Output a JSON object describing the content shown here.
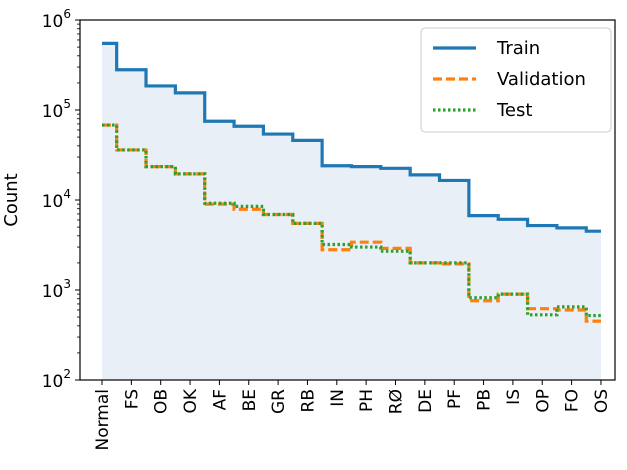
{
  "chart_data": {
    "type": "step",
    "categories": [
      "Normal",
      "FS",
      "OB",
      "OK",
      "AF",
      "BE",
      "GR",
      "RB",
      "IN",
      "PH",
      "RØ",
      "DE",
      "PF",
      "PB",
      "IS",
      "OP",
      "FO",
      "OS"
    ],
    "ylabel": "Count",
    "xlabel": "",
    "yscale": "log",
    "ylim": [
      100,
      1000000
    ],
    "y_ticks": [
      {
        "base": "10",
        "exp": "2"
      },
      {
        "base": "10",
        "exp": "3"
      },
      {
        "base": "10",
        "exp": "4"
      },
      {
        "base": "10",
        "exp": "5"
      },
      {
        "base": "10",
        "exp": "6"
      }
    ],
    "legend_position": "top-right",
    "grid": false,
    "fill_under_first_series": true,
    "fill_color": "#e8eff7",
    "series": [
      {
        "name": "Train",
        "color": "#1f77b4",
        "style": "solid",
        "values": [
          550000,
          280000,
          185000,
          155000,
          75000,
          66000,
          54000,
          46000,
          24000,
          23500,
          22500,
          19000,
          16500,
          6700,
          6100,
          5200,
          4900,
          4500
        ]
      },
      {
        "name": "Validation",
        "color": "#ff7f0e",
        "style": "dashed",
        "values": [
          68000,
          36000,
          23500,
          19500,
          9000,
          7900,
          6900,
          5500,
          2800,
          3400,
          2900,
          2000,
          1950,
          760,
          900,
          620,
          600,
          450
        ]
      },
      {
        "name": "Test",
        "color": "#2ca02c",
        "style": "dotted",
        "values": [
          68000,
          36000,
          23500,
          19500,
          9200,
          8500,
          6900,
          5500,
          3200,
          3000,
          2700,
          2000,
          2000,
          820,
          900,
          530,
          650,
          520
        ]
      }
    ]
  }
}
